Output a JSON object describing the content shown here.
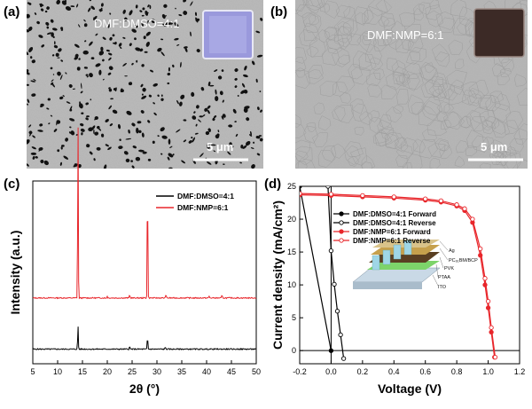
{
  "panels": {
    "a": {
      "label": "(a)",
      "sem_caption": "DMF:DMSO=4:1",
      "scale_bar": "5 μm"
    },
    "b": {
      "label": "(b)",
      "sem_caption": "DMF:NMP=6:1",
      "scale_bar": "5 μm"
    },
    "c": {
      "label": "(c)",
      "ylabel": "Intensity (a.u.)",
      "xlabel": "2θ (°)",
      "legend": [
        "DMF:DMSO=4:1",
        "DMF:NMP=6:1"
      ],
      "x_ticks": [
        "5",
        "10",
        "15",
        "20",
        "25",
        "30",
        "35",
        "40",
        "45",
        "50"
      ]
    },
    "d": {
      "label": "(d)",
      "ylabel": "Current density (mA/cm²)",
      "xlabel": "Voltage (V)",
      "legend": [
        "DMF:DMSO=4:1 Forward",
        "DMF:DMSO=4:1 Reverse",
        "DMF:NMP=6:1   Forward",
        "DMF:NMP=6:1   Reverse"
      ],
      "x_ticks": [
        "-0.2",
        "0.0",
        "0.2",
        "0.4",
        "0.6",
        "0.8",
        "1.0",
        "1.2"
      ],
      "y_ticks": [
        "0",
        "5",
        "10",
        "15",
        "20",
        "25"
      ],
      "device_layers": [
        "Ag",
        "PC₆₁BM/BCP",
        "PVK",
        "PTAA",
        "ITO"
      ]
    }
  },
  "colors": {
    "black_series": "#000000",
    "red_series": "#e8262b",
    "sem_bg": "#b9b9b9"
  },
  "chart_data": [
    {
      "type": "line",
      "panel": "c",
      "xlabel": "2θ (°)",
      "ylabel": "Intensity (a.u.)",
      "xlim": [
        5,
        50
      ],
      "series": [
        {
          "name": "DMF:DMSO=4:1",
          "color": "#000000",
          "baseline": 0.08,
          "peaks": [
            [
              14.1,
              0.13
            ],
            [
              24.5,
              0.015
            ],
            [
              28.1,
              0.07
            ],
            [
              31.7,
              0.01
            ]
          ]
        },
        {
          "name": "DMF:NMP=6:1",
          "color": "#e8262b",
          "baseline": 0.36,
          "peaks": [
            [
              14.1,
              0.98
            ],
            [
              20.0,
              0.01
            ],
            [
              24.5,
              0.02
            ],
            [
              28.1,
              0.65
            ],
            [
              31.8,
              0.02
            ],
            [
              40.5,
              0.01
            ],
            [
              43.1,
              0.015
            ]
          ]
        }
      ]
    },
    {
      "type": "line",
      "panel": "d",
      "xlabel": "Voltage (V)",
      "ylabel": "Current density (mA/cm²)",
      "xlim": [
        -0.2,
        1.2
      ],
      "ylim": [
        -2,
        25
      ],
      "series": [
        {
          "name": "DMF:DMSO=4:1 Forward",
          "color": "#000000",
          "marker": "filled-circle",
          "x": [
            -0.2,
            0.0
          ],
          "y": [
            25,
            0
          ]
        },
        {
          "name": "DMF:DMSO=4:1 Reverse",
          "color": "#000000",
          "marker": "open-circle",
          "x": [
            -0.02,
            0.0,
            0.02,
            0.04,
            0.06,
            0.08
          ],
          "y": [
            25,
            15.2,
            10.1,
            6.0,
            2.4,
            -1.2
          ]
        },
        {
          "name": "DMF:NMP=6:1 Forward",
          "color": "#e8262b",
          "marker": "filled-circle",
          "x": [
            -0.2,
            0.0,
            0.2,
            0.4,
            0.6,
            0.7,
            0.8,
            0.85,
            0.9,
            0.95,
            0.98,
            1.0,
            1.02,
            1.04
          ],
          "y": [
            23.7,
            23.6,
            23.4,
            23.2,
            22.9,
            22.6,
            22.0,
            21.3,
            19.5,
            14.5,
            10.0,
            6.5,
            2.8,
            -1.0
          ]
        },
        {
          "name": "DMF:NMP=6:1 Reverse",
          "color": "#e8262b",
          "marker": "open-circle",
          "x": [
            -0.2,
            0.0,
            0.2,
            0.4,
            0.6,
            0.7,
            0.8,
            0.85,
            0.9,
            0.95,
            0.98,
            1.0,
            1.02,
            1.045
          ],
          "y": [
            23.9,
            23.8,
            23.6,
            23.4,
            23.1,
            22.8,
            22.2,
            21.6,
            20.0,
            15.5,
            11.0,
            7.5,
            3.5,
            -1.0
          ]
        }
      ]
    }
  ]
}
